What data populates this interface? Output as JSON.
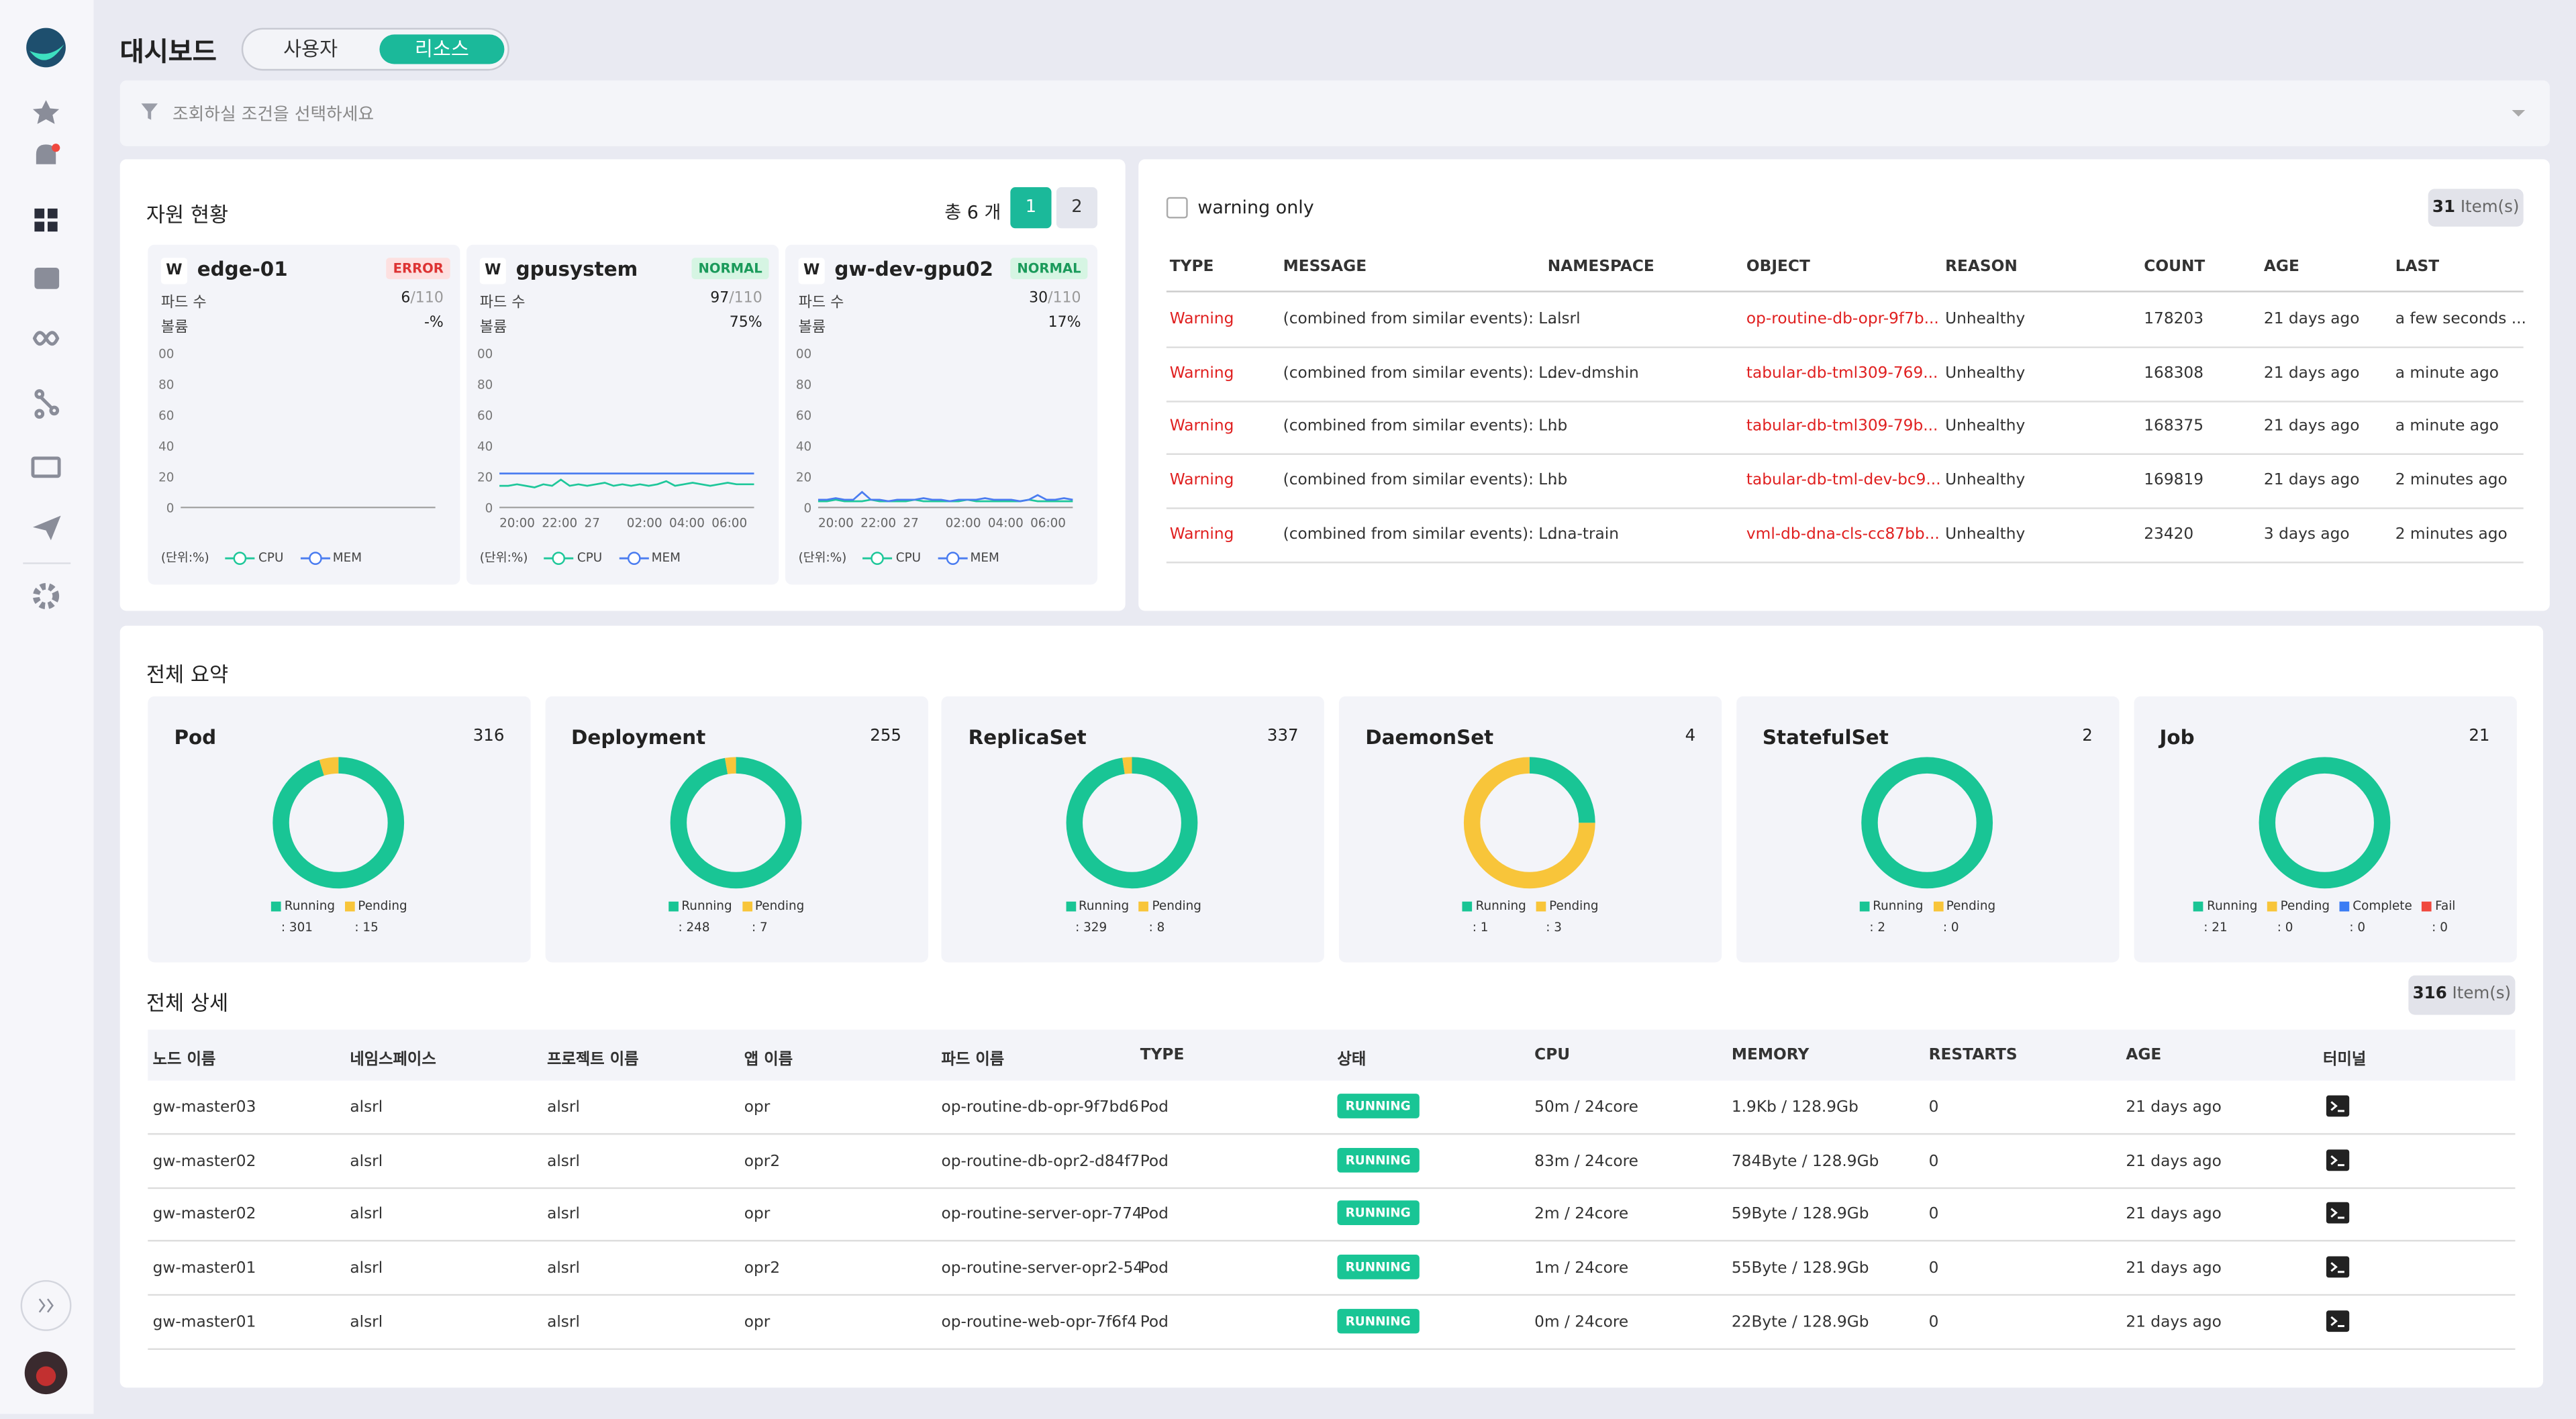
{
  "header": {
    "title": "대시보드",
    "tabs": [
      "사용자",
      "리소스"
    ],
    "active_tab": 1
  },
  "filter": {
    "placeholder": "조회하실 조건을 선택하세요"
  },
  "resources": {
    "title": "자원 현황",
    "total_label": "총 6 개",
    "pages": [
      "1",
      "2"
    ],
    "active_page": 0,
    "cards": [
      {
        "badge": "W",
        "name": "edge-01",
        "status": "ERROR",
        "pods_label": "파드 수",
        "pods": 6,
        "pods_max": "/110",
        "usage_label": "볼륨",
        "usage": "-%",
        "chart": {
          "ylim": [
            0,
            100
          ],
          "yticks": [
            {
              "value": 100,
              "label": "00"
            },
            80,
            60,
            40,
            20,
            0
          ],
          "unit_label": "(단위:%)",
          "series": [
            {
              "name": "CPU",
              "color": "#1ec79a",
              "values": []
            },
            {
              "name": "MEM",
              "color": "#4a7cf0",
              "values": []
            }
          ]
        }
      },
      {
        "badge": "W",
        "name": "gpusystem",
        "status": "NORMAL",
        "pods_label": "파드 수",
        "pods": 97,
        "pods_max": "/110",
        "usage_label": "볼륨",
        "usage": "75%",
        "chart": {
          "ylim": [
            0,
            100
          ],
          "yticks": [
            {
              "value": 100,
              "label": "00"
            },
            80,
            60,
            40,
            20,
            0
          ],
          "xticks": [
            "20:00",
            "22:00",
            "27",
            "02:00",
            "04:00",
            "06:00"
          ],
          "unit_label": "(단위:%)",
          "series": [
            {
              "name": "CPU",
              "color": "#1ec79a",
              "values": [
                14,
                14,
                15,
                14,
                13,
                15,
                14,
                18,
                14,
                15,
                14,
                15,
                16,
                14,
                15,
                14,
                15,
                14,
                15,
                17,
                14,
                15,
                16,
                15,
                14,
                15,
                16,
                15,
                15,
                15
              ]
            },
            {
              "name": "MEM",
              "color": "#4a7cf0",
              "values": [
                22,
                22,
                22,
                22,
                22,
                22,
                22,
                22,
                22,
                22,
                22,
                22,
                22,
                22,
                22,
                22,
                22,
                22,
                22,
                22,
                22,
                22,
                22,
                22,
                22,
                22,
                22,
                22,
                22,
                22
              ]
            }
          ]
        }
      },
      {
        "badge": "W",
        "name": "gw-dev-gpu02",
        "status": "NORMAL",
        "pods_label": "파드 수",
        "pods": 30,
        "pods_max": "/110",
        "usage_label": "볼륨",
        "usage": "17%",
        "chart": {
          "ylim": [
            0,
            100
          ],
          "yticks": [
            {
              "value": 100,
              "label": "00"
            },
            80,
            60,
            40,
            20,
            0
          ],
          "xticks": [
            "20:00",
            "22:00",
            "27",
            "02:00",
            "04:00",
            "06:00"
          ],
          "unit_label": "(단위:%)",
          "series": [
            {
              "name": "CPU",
              "color": "#1ec79a",
              "values": [
                4,
                4,
                5,
                4,
                4,
                4,
                5,
                4,
                4,
                4,
                4,
                5,
                4,
                4,
                4,
                4,
                4,
                5,
                4,
                4,
                4,
                4,
                4,
                4,
                5,
                4,
                4,
                4,
                4,
                4
              ]
            },
            {
              "name": "MEM",
              "color": "#4a7cf0",
              "values": [
                5,
                5,
                6,
                5,
                5,
                10,
                5,
                5,
                4,
                5,
                5,
                5,
                6,
                5,
                5,
                4,
                5,
                5,
                5,
                6,
                5,
                5,
                5,
                4,
                5,
                8,
                5,
                5,
                6,
                5
              ]
            }
          ]
        }
      }
    ]
  },
  "events": {
    "filter_label": "warning only",
    "count": 31,
    "count_unit": "Item(s)",
    "columns": [
      "TYPE",
      "MESSAGE",
      "NAMESPACE",
      "OBJECT",
      "REASON",
      "COUNT",
      "AGE",
      "LAST"
    ],
    "rows": [
      [
        "Warning",
        "(combined from similar events): L...",
        "alsrl",
        "op-routine-db-opr-9f7b...",
        "Unhealthy",
        178203,
        "21 days ago",
        "a few seconds ..."
      ],
      [
        "Warning",
        "(combined from similar events): L...",
        "dev-dmshin",
        "tabular-db-tml309-769...",
        "Unhealthy",
        168308,
        "21 days ago",
        "a minute ago"
      ],
      [
        "Warning",
        "(combined from similar events): L...",
        "hb",
        "tabular-db-tml309-79b...",
        "Unhealthy",
        168375,
        "21 days ago",
        "a minute ago"
      ],
      [
        "Warning",
        "(combined from similar events): L...",
        "hb",
        "tabular-db-tml-dev-bc9...",
        "Unhealthy",
        169819,
        "21 days ago",
        "2 minutes ago"
      ],
      [
        "Warning",
        "(combined from similar events): L...",
        "dna-train",
        "vml-db-dna-cls-cc87bb...",
        "Unhealthy",
        23420,
        "3 days ago",
        "2 minutes ago"
      ]
    ]
  },
  "summary": {
    "title": "전체 요약",
    "items": [
      {
        "name": "Pod",
        "total": 316,
        "segments": [
          {
            "name": "Running",
            "color": "#19c595",
            "value": 301,
            "value_label": ": 301"
          },
          {
            "name": "Pending",
            "color": "#f8c53a",
            "value": 15,
            "value_label": ": 15"
          }
        ]
      },
      {
        "name": "Deployment",
        "total": 255,
        "segments": [
          {
            "name": "Running",
            "color": "#19c595",
            "value": 248,
            "value_label": ": 248"
          },
          {
            "name": "Pending",
            "color": "#f8c53a",
            "value": 7,
            "value_label": ": 7"
          }
        ]
      },
      {
        "name": "ReplicaSet",
        "total": 337,
        "segments": [
          {
            "name": "Running",
            "color": "#19c595",
            "value": 329,
            "value_label": ": 329"
          },
          {
            "name": "Pending",
            "color": "#f8c53a",
            "value": 8,
            "value_label": ": 8"
          }
        ]
      },
      {
        "name": "DaemonSet",
        "total": 4,
        "segments": [
          {
            "name": "Running",
            "color": "#19c595",
            "value": 1,
            "value_label": ": 1"
          },
          {
            "name": "Pending",
            "color": "#f8c53a",
            "value": 3,
            "value_label": ": 3"
          }
        ]
      },
      {
        "name": "StatefulSet",
        "total": 2,
        "segments": [
          {
            "name": "Running",
            "color": "#19c595",
            "value": 2,
            "value_label": ": 2"
          },
          {
            "name": "Pending",
            "color": "#f8c53a",
            "value": 0,
            "value_label": ": 0"
          }
        ]
      },
      {
        "name": "Job",
        "total": 21,
        "segments": [
          {
            "name": "Running",
            "color": "#19c595",
            "value": 21,
            "value_label": ": 21"
          },
          {
            "name": "Pending",
            "color": "#f8c53a",
            "value": 0,
            "value_label": ": 0"
          },
          {
            "name": "Complete",
            "color": "#3b7cf4",
            "value": 0,
            "value_label": ": 0"
          },
          {
            "name": "Fail",
            "color": "#f0483e",
            "value": 0,
            "value_label": ": 0"
          }
        ]
      }
    ]
  },
  "details": {
    "title": "전체 상세",
    "count": 316,
    "count_unit": "Item(s)",
    "columns": [
      "노드 이름",
      "네임스페이스",
      "프로젝트 이름",
      "앱 이름",
      "파드 이름",
      "TYPE",
      "상태",
      "CPU",
      "MEMORY",
      "RESTARTS",
      "AGE",
      "터미널"
    ],
    "rows": [
      [
        "gw-master03",
        "alsrl",
        "alsrl",
        "opr",
        "op-routine-db-opr-9f7bd6",
        "Pod",
        "RUNNING",
        "50m / 24core",
        "1.9Kb / 128.9Gb",
        0,
        "21 days ago"
      ],
      [
        "gw-master02",
        "alsrl",
        "alsrl",
        "opr2",
        "op-routine-db-opr2-d84f7",
        "Pod",
        "RUNNING",
        "83m / 24core",
        "784Byte / 128.9Gb",
        0,
        "21 days ago"
      ],
      [
        "gw-master02",
        "alsrl",
        "alsrl",
        "opr",
        "op-routine-server-opr-774",
        "Pod",
        "RUNNING",
        "2m / 24core",
        "59Byte / 128.9Gb",
        0,
        "21 days ago"
      ],
      [
        "gw-master01",
        "alsrl",
        "alsrl",
        "opr2",
        "op-routine-server-opr2-54",
        "Pod",
        "RUNNING",
        "1m / 24core",
        "55Byte / 128.9Gb",
        0,
        "21 days ago"
      ],
      [
        "gw-master01",
        "alsrl",
        "alsrl",
        "opr",
        "op-routine-web-opr-7f6f4",
        "Pod",
        "RUNNING",
        "0m / 24core",
        "22Byte / 128.9Gb",
        0,
        "21 days ago"
      ]
    ]
  }
}
